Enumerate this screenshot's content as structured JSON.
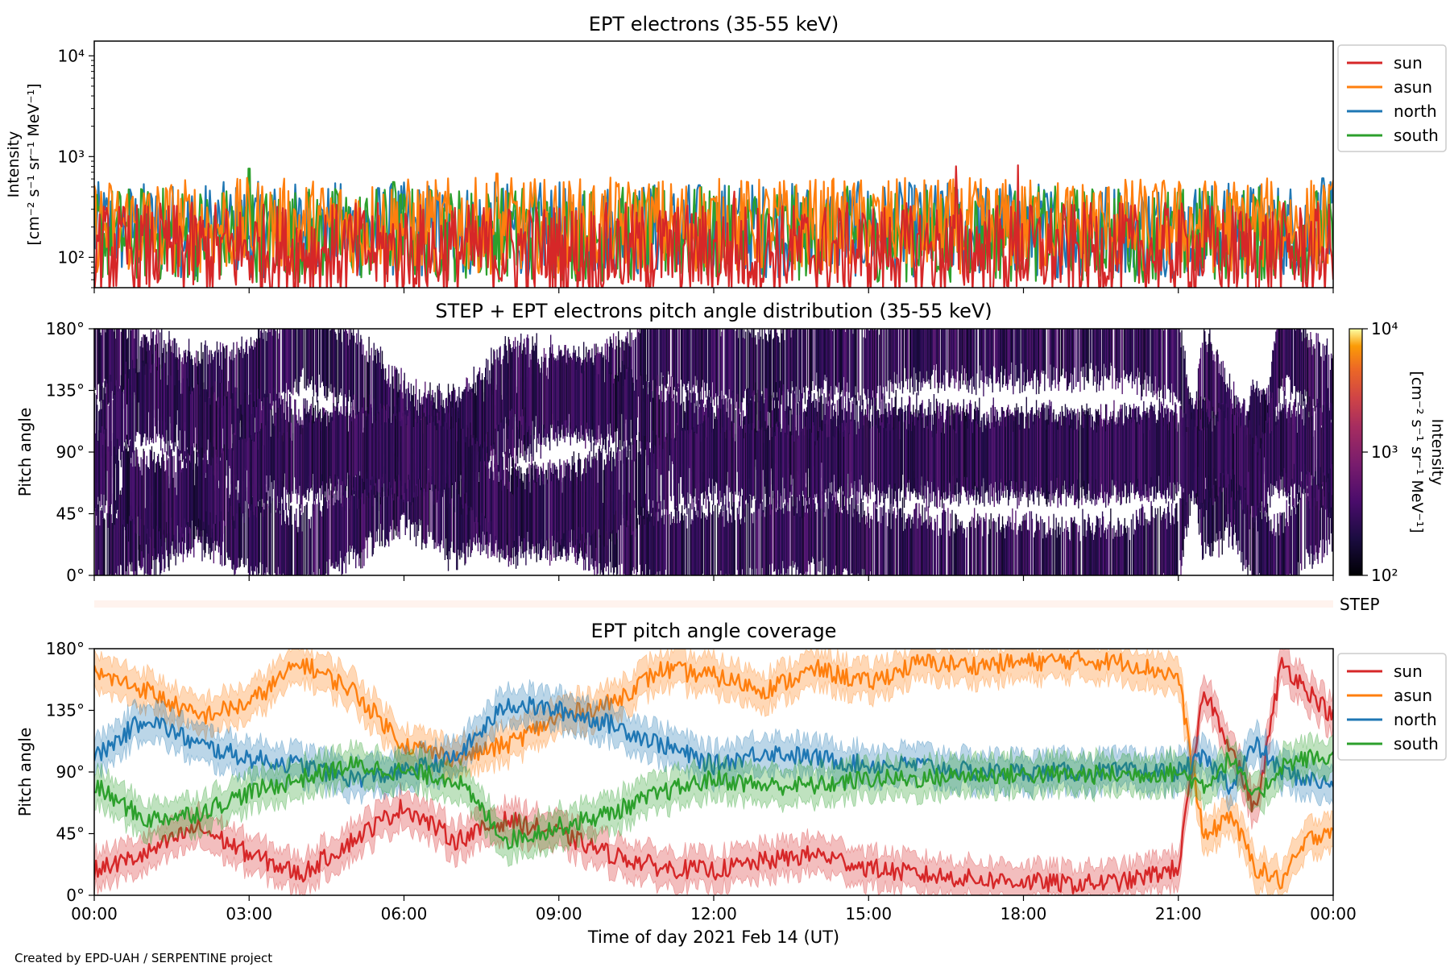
{
  "figure": {
    "footer": "Created by EPD-UAH / SERPENTINE project"
  },
  "chart_data": [
    {
      "type": "line",
      "title": "EPT electrons (35-55 keV)",
      "ylabel_line1": "Intensity",
      "ylabel_line2": "[cm⁻² s⁻¹ sr⁻¹ MeV⁻¹]",
      "yscale": "log",
      "ylim": [
        50,
        14000
      ],
      "ytick_values": [
        100,
        1000,
        10000
      ],
      "ytick_labels": [
        "10²",
        "10³",
        "10⁴"
      ],
      "xlim": [
        0,
        24
      ],
      "legend_position": "upper right, outside",
      "series": [
        {
          "name": "sun",
          "color": "#d62728",
          "typical": 130,
          "spikes": [
            [
              16.7,
              800
            ],
            [
              17.9,
              820
            ],
            [
              12.4,
              450
            ]
          ]
        },
        {
          "name": "asun",
          "color": "#ff7f0e",
          "typical": 230,
          "spikes": [
            [
              7.8,
              680
            ],
            [
              20.5,
              450
            ]
          ]
        },
        {
          "name": "north",
          "color": "#1f77b4",
          "typical": 210,
          "spikes": [
            [
              23.8,
              610
            ],
            [
              13.3,
              420
            ]
          ]
        },
        {
          "name": "south",
          "color": "#2ca02c",
          "typical": 190,
          "spikes": [
            [
              3.0,
              760
            ],
            [
              5.8,
              560
            ],
            [
              8.3,
              480
            ]
          ]
        }
      ]
    },
    {
      "type": "heatmap",
      "title": "STEP + EPT electrons pitch angle distribution (35-55 keV)",
      "ylabel": "Pitch angle",
      "ylim": [
        0,
        180
      ],
      "ytick_values": [
        0,
        45,
        90,
        135,
        180
      ],
      "ytick_labels": [
        "0°",
        "45°",
        "90°",
        "135°",
        "180°"
      ],
      "xlim": [
        0,
        24
      ],
      "colormap": "inferno",
      "colorbar": {
        "label_line1": "Intensity",
        "label_line2": "[cm⁻² s⁻¹ sr⁻¹ MeV⁻¹]",
        "scale": "log",
        "range": [
          100,
          10000
        ],
        "tick_values": [
          100,
          1000,
          10000
        ],
        "tick_labels": [
          "10²",
          "10³",
          "10⁴"
        ]
      },
      "step_strip_label": "STEP"
    },
    {
      "type": "line",
      "title": "EPT pitch angle coverage",
      "ylabel": "Pitch angle",
      "xlabel": "Time of day 2021 Feb 14 (UT)",
      "ylim": [
        0,
        180
      ],
      "ytick_values": [
        0,
        45,
        90,
        135,
        180
      ],
      "ytick_labels": [
        "0°",
        "45°",
        "90°",
        "135°",
        "180°"
      ],
      "xlim": [
        0,
        24
      ],
      "xtick_values": [
        0,
        3,
        6,
        9,
        12,
        15,
        18,
        21,
        24
      ],
      "xtick_labels": [
        "00:00",
        "03:00",
        "06:00",
        "09:00",
        "12:00",
        "15:00",
        "18:00",
        "21:00",
        "00:00"
      ],
      "band_half_width": 13,
      "legend_position": "upper right, outside",
      "series": [
        {
          "name": "sun",
          "color": "#d62728",
          "x": [
            0,
            1,
            2,
            3,
            4,
            5,
            6,
            7,
            8,
            9,
            10,
            11,
            12,
            13,
            14,
            15,
            16,
            17,
            18,
            19,
            20,
            21,
            21.5,
            22,
            22.5,
            23,
            23.5,
            24
          ],
          "y": [
            18,
            30,
            50,
            30,
            15,
            40,
            65,
            40,
            55,
            45,
            30,
            20,
            18,
            25,
            30,
            20,
            15,
            12,
            10,
            8,
            10,
            20,
            150,
            110,
            60,
            170,
            150,
            130
          ]
        },
        {
          "name": "asun",
          "color": "#ff7f0e",
          "x": [
            0,
            1,
            2,
            3,
            4,
            5,
            6,
            7,
            8,
            9,
            10,
            11,
            12,
            13,
            14,
            15,
            16,
            17,
            18,
            19,
            20,
            21,
            21.5,
            22,
            22.5,
            23,
            23.5,
            24
          ],
          "y": [
            162,
            150,
            130,
            140,
            170,
            150,
            110,
            100,
            110,
            130,
            140,
            165,
            160,
            150,
            165,
            155,
            170,
            168,
            170,
            172,
            170,
            160,
            40,
            60,
            20,
            10,
            40,
            50
          ]
        },
        {
          "name": "north",
          "color": "#1f77b4",
          "x": [
            0,
            1,
            2,
            3,
            4,
            5,
            6,
            7,
            8,
            9,
            10,
            11,
            12,
            13,
            14,
            15,
            16,
            17,
            18,
            19,
            20,
            21,
            21.5,
            22,
            22.5,
            23,
            23.5,
            24
          ],
          "y": [
            100,
            130,
            110,
            100,
            95,
            85,
            90,
            100,
            140,
            135,
            125,
            110,
            95,
            105,
            100,
            95,
            95,
            90,
            90,
            90,
            90,
            90,
            100,
            80,
            110,
            90,
            85,
            80
          ]
        },
        {
          "name": "south",
          "color": "#2ca02c",
          "x": [
            0,
            1,
            2,
            3,
            4,
            5,
            6,
            7,
            8,
            9,
            10,
            11,
            12,
            13,
            14,
            15,
            16,
            17,
            18,
            19,
            20,
            21,
            21.5,
            22,
            22.5,
            23,
            23.5,
            24
          ],
          "y": [
            80,
            55,
            60,
            75,
            85,
            95,
            90,
            85,
            40,
            50,
            60,
            75,
            85,
            80,
            80,
            85,
            85,
            88,
            88,
            88,
            88,
            90,
            80,
            100,
            70,
            95,
            100,
            100
          ]
        }
      ]
    }
  ]
}
